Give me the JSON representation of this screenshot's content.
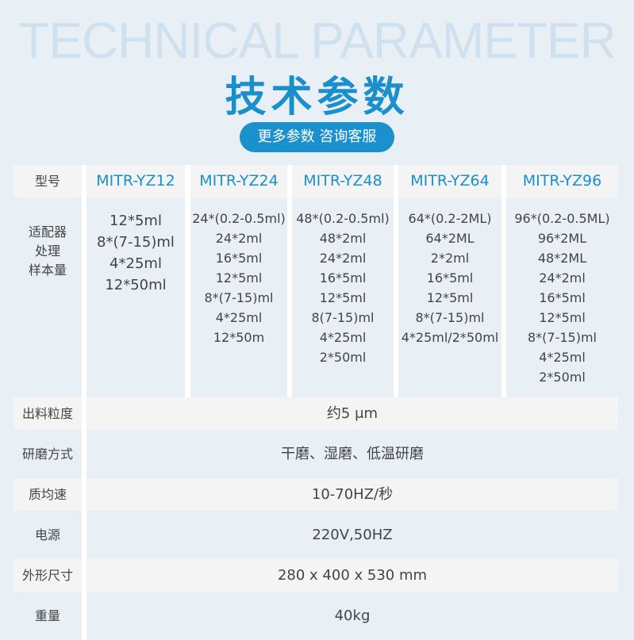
{
  "bg_title": "TECHNICAL PARAMETER",
  "title": "技术参数",
  "button": "更多参数 咨询客服",
  "table": {
    "model_label": "型号",
    "adapter_label": [
      "适配器",
      "处理",
      "样本量"
    ],
    "models": [
      {
        "name": "MITR-YZ12",
        "samples": [
          "12*5ml",
          "8*(7-15)ml",
          "4*25ml",
          "12*50ml"
        ]
      },
      {
        "name": "MITR-YZ24",
        "samples": [
          "24*(0.2-0.5ml)",
          "24*2ml",
          "16*5ml",
          "12*5ml",
          "8*(7-15)ml",
          "4*25ml",
          "12*50m"
        ]
      },
      {
        "name": "MITR-YZ48",
        "samples": [
          "48*(0.2-0.5ml)",
          "48*2ml",
          "24*2ml",
          "16*5ml",
          "12*5ml",
          "8(7-15)ml",
          "4*25ml",
          "2*50ml"
        ]
      },
      {
        "name": "MITR-YZ64",
        "samples": [
          "64*(0.2-2ML)",
          "64*2ML",
          "2*2ml",
          "16*5ml",
          "12*5ml",
          "8*(7-15)ml",
          "4*25ml/2*50ml"
        ]
      },
      {
        "name": "MITR-YZ96",
        "samples": [
          "96*(0.2-0.5ML)",
          "96*2ML",
          "48*2ML",
          "24*2ml",
          "16*5ml",
          "12*5ml",
          "8*(7-15)ml",
          "4*25ml",
          "2*50ml"
        ]
      }
    ],
    "rows": [
      {
        "label": "出料粒度",
        "value": "约5 μm"
      },
      {
        "label": "研磨方式",
        "value": "干磨、湿磨、低温研磨"
      },
      {
        "label": "质均速",
        "value": "10-70HZ/秒"
      },
      {
        "label": "电源",
        "value": "220V,50HZ"
      },
      {
        "label": "外形尺寸",
        "value": "280 x 400 x 530 mm"
      },
      {
        "label": "重量",
        "value": "40kg"
      }
    ]
  },
  "colors": {
    "accent": "#1a8fcc",
    "watermark": "#cfe0ee",
    "background": "#e8f0f6",
    "header_cell": "#f4f4f4"
  }
}
